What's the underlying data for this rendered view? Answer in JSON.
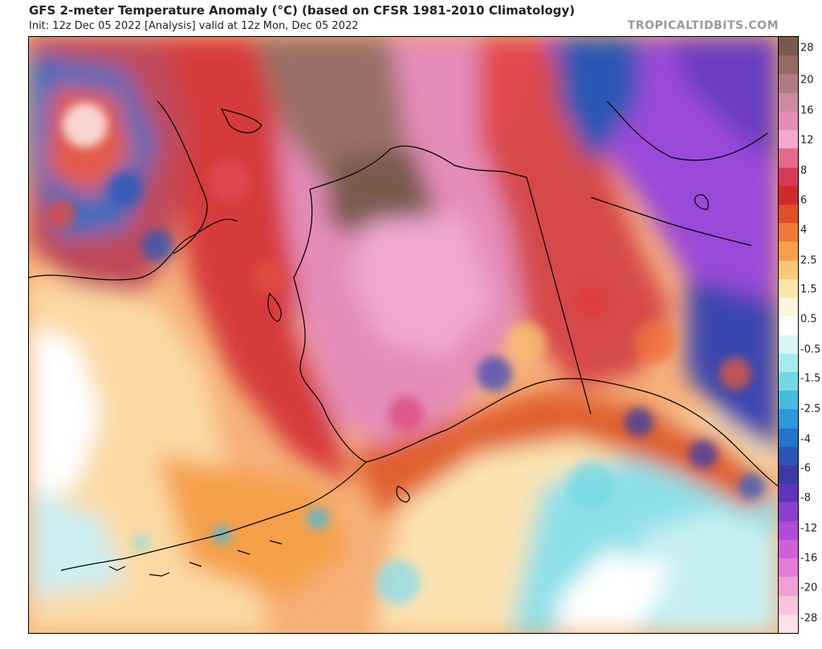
{
  "header": {
    "title": "GFS 2-meter Temperature Anomaly (°C) (based on CFSR 1981-2010 Climatology)",
    "subtitle": "Init: 12z Dec 05 2022   [Analysis]   valid at 12z Mon, Dec 05 2022",
    "credit": "TROPICALTIDBITS.COM"
  },
  "colorbar": {
    "labels": [
      "28",
      "20",
      "16",
      "12",
      "8",
      "6",
      "4",
      "2.5",
      "1.5",
      "0.5",
      "-0.5",
      "-1.5",
      "-2.5",
      "-4",
      "-6",
      "-8",
      "-12",
      "-16",
      "-20",
      "-28"
    ],
    "colors": [
      "#7a5a4e",
      "#946a62",
      "#b07c80",
      "#cc8aa2",
      "#e48cb8",
      "#f3a8cf",
      "#e46a8a",
      "#d63c57",
      "#cf2a2a",
      "#e04e2a",
      "#ef7a38",
      "#f5a04a",
      "#f8c778",
      "#fbe6a8",
      "#fdf6dc",
      "#ffffff",
      "#d8f6f6",
      "#a6ecec",
      "#74d8e4",
      "#48bce0",
      "#2e98d8",
      "#2474c8",
      "#2c56b4",
      "#3b3aa4",
      "#5e34b8",
      "#8a40cc",
      "#b04cd8",
      "#d060d8",
      "#e47cd8",
      "#f0a0d8",
      "#f8c4dc",
      "#fde0e8"
    ]
  }
}
